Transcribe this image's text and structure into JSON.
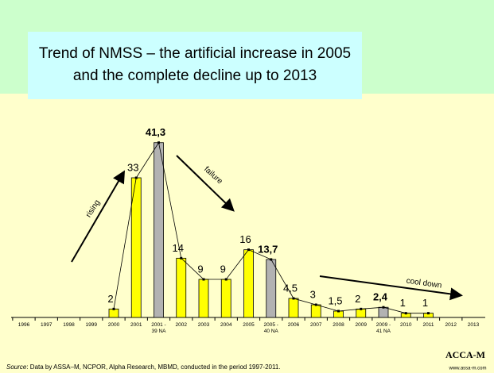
{
  "chart_data": {
    "type": "bar",
    "title": "Trend of NMSS – the artificial increase in 2005\nand the complete decline up to 2013",
    "categories": [
      "1996",
      "1997",
      "1998",
      "1999",
      "2000",
      "2001",
      "2001 -\n39 NA",
      "2002",
      "2003",
      "2004",
      "2005",
      "2005 -\n40 NA",
      "2006",
      "2007",
      "2008",
      "2009",
      "2009 -\n41 NA",
      "2010",
      "2011",
      "2012",
      "2013"
    ],
    "values": [
      null,
      null,
      null,
      null,
      2,
      33,
      41.3,
      14,
      9,
      9,
      16,
      13.7,
      4.5,
      3,
      1.5,
      2,
      2.4,
      1,
      1,
      null,
      null
    ],
    "value_labels": [
      null,
      null,
      null,
      null,
      "2",
      "33",
      "41,3",
      "14",
      "9",
      "9",
      "16",
      "13,7",
      "4,5",
      "3",
      "1,5",
      "2",
      "2,4",
      "1",
      "1",
      null,
      null
    ],
    "color": "#ffff00",
    "colors": [
      "#ffff00",
      "#ffff00",
      "#ffff00",
      "#ffff00",
      "#ffff00",
      "#ffff00",
      "#b2b2b2",
      "#ffff00",
      "#ffff00",
      "#ffff00",
      "#ffff00",
      "#b2b2b2",
      "#ffff00",
      "#ffff00",
      "#ffff00",
      "#ffff00",
      "#b2b2b2",
      "#ffff00",
      "#ffff00",
      "#ffff00",
      "#ffff00"
    ],
    "ylim": [
      0,
      45
    ],
    "annotations": [
      "rising",
      "failure",
      "cool down"
    ],
    "source_label": "Source",
    "source": ": Data by ASSA–M, NCPOR, Alpha Research, MBMD, conducted in the period 1997-2011.",
    "logo": "ACCA-M",
    "website": "www.assa-m.com"
  }
}
